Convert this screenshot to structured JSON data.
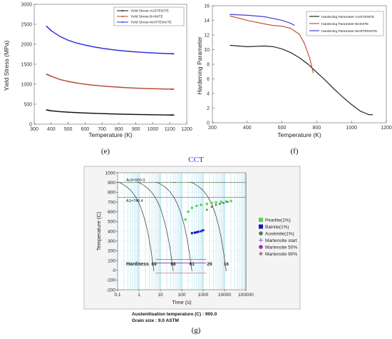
{
  "chart_data": [
    {
      "type": "line",
      "caption": "(e)",
      "xlabel": "Temperature (K)",
      "ylabel": "Yield Stress (MPa)",
      "xlim": [
        300,
        1200
      ],
      "ylim": [
        0,
        3000
      ],
      "xticks": [
        "300",
        "400",
        "500",
        "600",
        "700",
        "800",
        "900",
        "1000",
        "1100",
        "1200"
      ],
      "yticks": [
        "0",
        "500",
        "1000",
        "1500",
        "2000",
        "2500",
        "3000"
      ],
      "legend_position": "top-right",
      "series": [
        {
          "name": "Yield Stress-AUSTENITE",
          "color": "#111111",
          "x": [
            373,
            400,
            450,
            500,
            550,
            600,
            650,
            700,
            750,
            800,
            850,
            900,
            950,
            1000,
            1050,
            1100,
            1123
          ],
          "y": [
            355,
            335,
            315,
            300,
            290,
            280,
            272,
            265,
            258,
            252,
            247,
            243,
            240,
            236,
            233,
            230,
            228
          ]
        },
        {
          "name": "Yield Stress-BAINITE",
          "color": "#b5482a",
          "x": [
            373,
            400,
            450,
            500,
            550,
            600,
            650,
            700,
            750,
            800,
            850,
            900,
            950,
            1000,
            1050,
            1100,
            1123
          ],
          "y": [
            1250,
            1200,
            1120,
            1070,
            1030,
            1000,
            975,
            955,
            940,
            925,
            912,
            902,
            893,
            887,
            882,
            877,
            875
          ]
        },
        {
          "name": "Yield Stress-MARTENSITE",
          "color": "#2b2bd6",
          "x": [
            373,
            400,
            450,
            500,
            550,
            600,
            650,
            700,
            750,
            800,
            850,
            900,
            950,
            1000,
            1050,
            1100,
            1123
          ],
          "y": [
            2450,
            2340,
            2200,
            2100,
            2030,
            1980,
            1935,
            1900,
            1870,
            1845,
            1825,
            1808,
            1795,
            1783,
            1772,
            1765,
            1760
          ]
        }
      ]
    },
    {
      "type": "line",
      "caption": "(f)",
      "xlabel": "Temperature (K)",
      "ylabel": "Hardening Parameter",
      "xlim": [
        200,
        1200
      ],
      "ylim": [
        0,
        16
      ],
      "xticks": [
        "200",
        "400",
        "600",
        "800",
        "1000",
        "1200"
      ],
      "yticks": [
        "0",
        "2",
        "4",
        "6",
        "8",
        "10",
        "12",
        "14",
        "16"
      ],
      "legend_position": "top-right",
      "series": [
        {
          "name": "Hardening Parameter-AUSTENITE",
          "color": "#111111",
          "x": [
            300,
            400,
            500,
            550,
            600,
            650,
            700,
            750,
            800,
            850,
            900,
            950,
            1000,
            1050,
            1100,
            1123
          ],
          "y": [
            10.6,
            10.4,
            10.5,
            10.4,
            10.1,
            9.6,
            8.9,
            8.0,
            6.9,
            5.8,
            4.6,
            3.5,
            2.5,
            1.6,
            1.1,
            1.1
          ]
        },
        {
          "name": "Hardening Parameter-BAINITE",
          "color": "#b5482a",
          "x": [
            300,
            400,
            500,
            550,
            600,
            650,
            700,
            730,
            760,
            780
          ],
          "y": [
            14.6,
            14.0,
            13.5,
            13.3,
            13.2,
            12.9,
            12.1,
            10.8,
            8.8,
            6.8
          ]
        },
        {
          "name": "Hardening Parameter-MARTENSITE",
          "color": "#2b2bd6",
          "x": [
            300,
            400,
            500,
            600,
            650,
            673
          ],
          "y": [
            14.8,
            14.7,
            14.5,
            14.0,
            13.6,
            13.3
          ]
        }
      ]
    },
    {
      "type": "line",
      "caption": "(g)",
      "title": "CCT",
      "xlabel": "Time (s)",
      "ylabel": "Temperature (C)",
      "xscale": "log",
      "xlim": [
        0.1,
        100000
      ],
      "ylim": [
        -200,
        1000
      ],
      "xticks": [
        "0.1",
        "1",
        "10",
        "100",
        "1000",
        "10000",
        "100000"
      ],
      "yticks": [
        "1000",
        "900",
        "800",
        "700",
        "600",
        "500",
        "400",
        "300",
        "200",
        "100",
        "0",
        "-100",
        "-200"
      ],
      "annotations": [
        "Ac3=900.0",
        "A1=748.4",
        "Hardness"
      ],
      "hardness_values": [
        "69",
        "68",
        "61",
        "29",
        "16"
      ],
      "footer": [
        "Austenitisation temperature (C) : 900.0",
        "Grain size : 9.0 ASTM"
      ],
      "legend_position": "right",
      "legend": [
        {
          "name": "Pearlite(1%)",
          "color": "#55d655",
          "symbol": "square"
        },
        {
          "name": "Bainite(1%)",
          "color": "#1515c8",
          "symbol": "square"
        },
        {
          "name": "Austenite(1%)",
          "color": "#4a7a4a",
          "symbol": "circle"
        },
        {
          "name": "Martensite start",
          "color": "#8a5ac8",
          "symbol": "plus"
        },
        {
          "name": "Martensite 50%",
          "color": "#a02ab0",
          "symbol": "circle"
        },
        {
          "name": "Martensite 90%",
          "color": "#c07a7a",
          "symbol": "diamond"
        }
      ],
      "lines": {
        "Ac3": 900.0,
        "A1": 748.4,
        "Ms": 110,
        "M50": 75,
        "M90": -30
      },
      "cooling_end_times": [
        5,
        40,
        300,
        2000,
        12000
      ],
      "pearlite_points": {
        "x": [
          150,
          200,
          300,
          500,
          800,
          1500,
          2500,
          4000,
          7000,
          12000,
          20000
        ],
        "y": [
          520,
          600,
          640,
          660,
          670,
          680,
          690,
          695,
          700,
          705,
          710
        ]
      },
      "bainite_points": {
        "x": [
          300,
          400,
          500,
          600,
          800,
          1000
        ],
        "y": [
          380,
          385,
          390,
          395,
          400,
          410
        ]
      },
      "austenite_points": {
        "x": [
          1500,
          2500,
          4000,
          6000,
          9000,
          14000
        ],
        "y": [
          620,
          650,
          670,
          680,
          690,
          700
        ]
      }
    }
  ]
}
